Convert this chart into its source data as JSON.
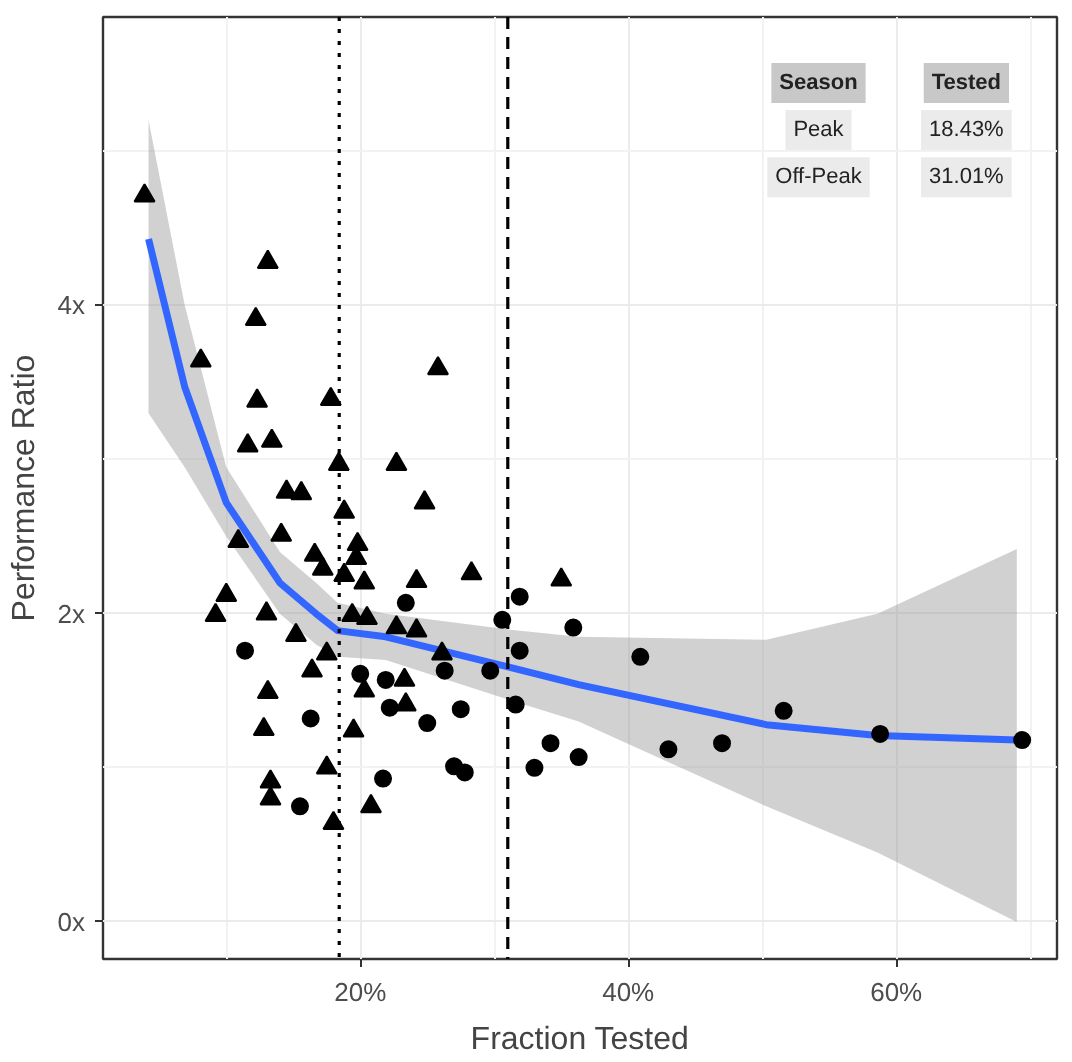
{
  "chart_data": {
    "type": "scatter",
    "xlabel": "Fraction Tested",
    "ylabel": "Performance Ratio",
    "xlim": [
      0.8,
      72
    ],
    "ylim": [
      -0.24,
      5.87
    ],
    "xticks": [
      {
        "value": 20,
        "label": "20%"
      },
      {
        "value": 40,
        "label": "40%"
      },
      {
        "value": 60,
        "label": "60%"
      }
    ],
    "yticks": [
      {
        "value": 0,
        "label": "0x"
      },
      {
        "value": 2,
        "label": "2x"
      },
      {
        "value": 4,
        "label": "4x"
      }
    ],
    "grid": true,
    "series": [
      {
        "marker": "triangle",
        "color": "#000000",
        "x": [
          3.9,
          8.1,
          13.1,
          12.2,
          12.3,
          11.6,
          13.4,
          14.5,
          15.6,
          10.9,
          14.1,
          16.6,
          10.0,
          9.2,
          13.0,
          15.2,
          16.4,
          13.1,
          12.8,
          13.3,
          13.3,
          17.5,
          18.0,
          17.2,
          25.8,
          17.8,
          18.4,
          22.7,
          18.8,
          24.8,
          19.8,
          19.7,
          18.8,
          20.3,
          24.2,
          28.3,
          35.0,
          19.4,
          20.5,
          22.7,
          24.2,
          26.1,
          17.5,
          20.3,
          23.3,
          23.4,
          19.5,
          20.8
        ],
        "values": [
          4.71,
          3.64,
          4.28,
          3.91,
          3.38,
          3.09,
          3.12,
          2.79,
          2.78,
          2.47,
          2.51,
          2.38,
          2.12,
          1.99,
          2.0,
          1.86,
          1.63,
          1.49,
          1.25,
          0.91,
          0.8,
          1.0,
          0.64,
          2.29,
          3.59,
          3.39,
          2.97,
          2.97,
          2.66,
          2.72,
          2.45,
          2.36,
          2.25,
          2.2,
          2.21,
          2.26,
          2.22,
          1.99,
          1.97,
          1.91,
          1.89,
          1.74,
          1.74,
          1.5,
          1.57,
          1.41,
          1.24,
          0.75
        ]
      },
      {
        "marker": "circle",
        "color": "#000000",
        "x": [
          11.4,
          16.3,
          15.5,
          23.4,
          31.9,
          30.6,
          35.9,
          31.9,
          26.3,
          29.7,
          20.0,
          21.9,
          22.2,
          27.5,
          31.6,
          25.0,
          34.2,
          36.3,
          33.0,
          27.0,
          27.8,
          21.7,
          40.9,
          43.0,
          47.0,
          51.6,
          58.8,
          69.4
        ],
        "values": [
          1.76,
          1.32,
          0.75,
          2.07,
          2.11,
          1.96,
          1.91,
          1.76,
          1.63,
          1.63,
          1.61,
          1.57,
          1.39,
          1.38,
          1.41,
          1.29,
          1.16,
          1.07,
          1.0,
          1.01,
          0.97,
          0.93,
          1.72,
          1.12,
          1.16,
          1.37,
          1.22,
          1.18
        ]
      },
      {
        "type": "line",
        "color": "#3366ff",
        "x": [
          4.2,
          6.9,
          10.0,
          14.0,
          16.7,
          18.3,
          21.9,
          30.8,
          36.3,
          50.3,
          58.6,
          69.0
        ],
        "values": [
          4.43,
          3.47,
          2.72,
          2.2,
          2.0,
          1.89,
          1.85,
          1.66,
          1.54,
          1.28,
          1.21,
          1.18
        ],
        "lower": [
          3.3,
          2.95,
          2.5,
          2.0,
          1.8,
          1.72,
          1.7,
          1.45,
          1.3,
          0.75,
          0.45,
          0.0
        ],
        "upper": [
          5.2,
          4.0,
          2.95,
          2.4,
          2.2,
          2.07,
          2.0,
          1.9,
          1.85,
          1.83,
          2.0,
          2.42
        ]
      }
    ],
    "ref_lines": [
      {
        "axis": "x",
        "value": 18.43,
        "line_style": "dotted",
        "color": "#000000"
      },
      {
        "axis": "x",
        "value": 31.01,
        "line_style": "dashed",
        "color": "#000000"
      }
    ],
    "annotations": [
      "Season",
      "Tested",
      "Peak",
      "18.43%",
      "Off-Peak",
      "31.01%"
    ]
  }
}
